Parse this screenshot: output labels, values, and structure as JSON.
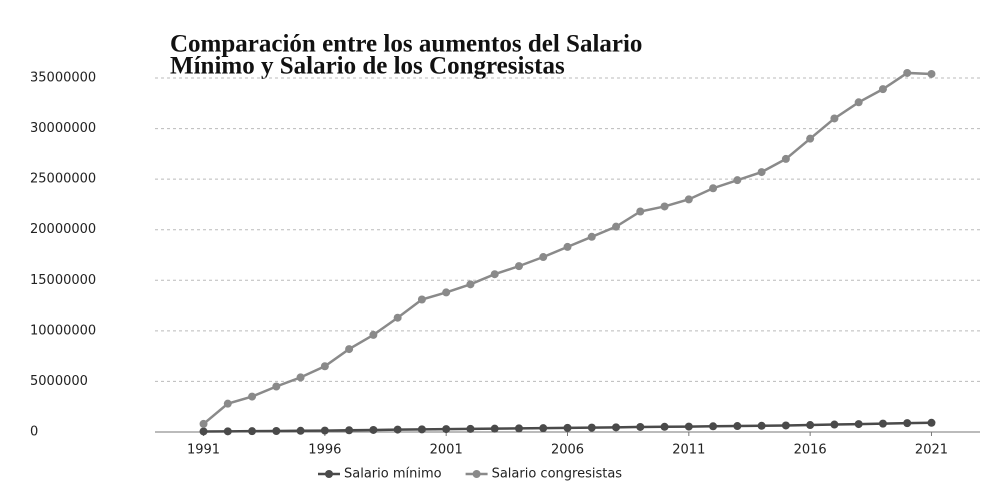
{
  "chart_data": {
    "type": "line",
    "title": [
      "Comparación entre los aumentos del Salario",
      "Mínimo y Salario de los Congresistas"
    ],
    "x": [
      1991,
      1992,
      1993,
      1994,
      1995,
      1996,
      1997,
      1998,
      1999,
      2000,
      2001,
      2002,
      2003,
      2004,
      2005,
      2006,
      2007,
      2008,
      2009,
      2010,
      2011,
      2012,
      2013,
      2014,
      2015,
      2016,
      2017,
      2018,
      2019,
      2020,
      2021
    ],
    "series": [
      {
        "name": "Salario mínimo",
        "color": "#4a4a4a",
        "values": [
          51716,
          65190,
          81510,
          98700,
          118934,
          142125,
          172005,
          203826,
          236460,
          260100,
          286000,
          309000,
          332000,
          358000,
          381500,
          408000,
          433700,
          461500,
          496900,
          515000,
          535600,
          566700,
          589500,
          616000,
          644350,
          689455,
          737717,
          781242,
          828116,
          877803,
          908526
        ]
      },
      {
        "name": "Salario congresistas",
        "color": "#8a8a8a",
        "values": [
          800000,
          2800000,
          3500000,
          4500000,
          5400000,
          6500000,
          8200000,
          9600000,
          11300000,
          13100000,
          13800000,
          14600000,
          15600000,
          16400000,
          17300000,
          18300000,
          19300000,
          20300000,
          21800000,
          22300000,
          23000000,
          24100000,
          24900000,
          25700000,
          27000000,
          29000000,
          31000000,
          32600000,
          33900000,
          35500000,
          35400000
        ]
      }
    ],
    "xlim": [
      1989,
      2023
    ],
    "xticks": [
      1991,
      1996,
      2001,
      2006,
      2011,
      2016,
      2021
    ],
    "ylim": [
      0,
      35000000
    ],
    "yticks": [
      0,
      5000000,
      10000000,
      15000000,
      20000000,
      25000000,
      30000000,
      35000000
    ],
    "grid": true,
    "legend": "bottom"
  }
}
